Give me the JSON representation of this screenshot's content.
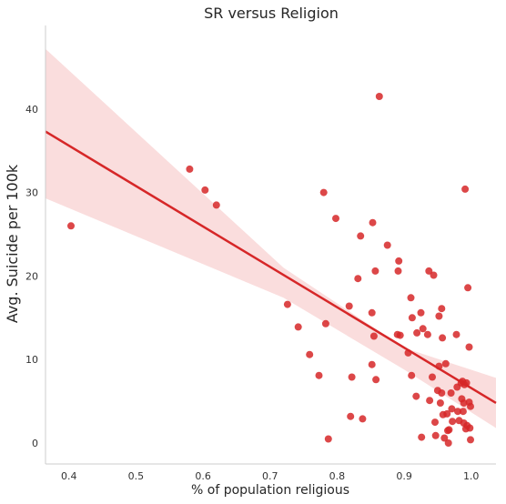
{
  "chart_data": {
    "type": "scatter",
    "title": "SR versus Religion",
    "xlabel": "% of population religious",
    "ylabel": "Avg. Suicide per 100k",
    "xlim": [
      0.365,
      1.037
    ],
    "ylim": [
      -2.5,
      50
    ],
    "xticks": [
      0.4,
      0.5,
      0.6,
      0.7,
      0.8,
      0.9,
      1.0
    ],
    "xtick_labels": [
      "0.4",
      "0.5",
      "0.6",
      "0.7",
      "0.8",
      "0.9",
      "1.0"
    ],
    "yticks": [
      0,
      10,
      20,
      30,
      40
    ],
    "ytick_labels": [
      "0",
      "10",
      "20",
      "30",
      "40"
    ],
    "grid": false,
    "regression": {
      "x": [
        0.365,
        1.037
      ],
      "y": [
        37.3,
        4.8
      ],
      "ci_upper": [
        [
          0.365,
          47.2
        ],
        [
          0.72,
          21.0
        ],
        [
          0.9,
          11.4
        ],
        [
          1.037,
          7.8
        ]
      ],
      "ci_lower": [
        [
          0.365,
          29.3
        ],
        [
          0.72,
          17.4
        ],
        [
          0.9,
          8.8
        ],
        [
          1.037,
          1.8
        ]
      ],
      "color": "#d62728",
      "band_color": "#f7c6c7"
    },
    "point_color": "#d62728",
    "points": [
      [
        0.403,
        26.0
      ],
      [
        0.58,
        32.8
      ],
      [
        0.603,
        30.3
      ],
      [
        0.62,
        28.5
      ],
      [
        0.726,
        16.6
      ],
      [
        0.742,
        13.9
      ],
      [
        0.759,
        10.6
      ],
      [
        0.773,
        8.1
      ],
      [
        0.78,
        30.0
      ],
      [
        0.783,
        14.3
      ],
      [
        0.787,
        0.5
      ],
      [
        0.798,
        26.9
      ],
      [
        0.818,
        16.4
      ],
      [
        0.82,
        3.2
      ],
      [
        0.822,
        7.9
      ],
      [
        0.831,
        19.7
      ],
      [
        0.835,
        24.8
      ],
      [
        0.838,
        2.9
      ],
      [
        0.852,
        15.6
      ],
      [
        0.852,
        9.4
      ],
      [
        0.853,
        26.4
      ],
      [
        0.855,
        12.8
      ],
      [
        0.857,
        20.6
      ],
      [
        0.858,
        7.6
      ],
      [
        0.863,
        41.5
      ],
      [
        0.875,
        23.7
      ],
      [
        0.89,
        13.0
      ],
      [
        0.891,
        20.6
      ],
      [
        0.892,
        21.8
      ],
      [
        0.894,
        12.9
      ],
      [
        0.906,
        10.8
      ],
      [
        0.91,
        17.4
      ],
      [
        0.911,
        8.1
      ],
      [
        0.912,
        15.0
      ],
      [
        0.918,
        5.6
      ],
      [
        0.919,
        13.2
      ],
      [
        0.925,
        15.6
      ],
      [
        0.926,
        0.7
      ],
      [
        0.928,
        13.7
      ],
      [
        0.935,
        13.0
      ],
      [
        0.937,
        20.6
      ],
      [
        0.938,
        5.1
      ],
      [
        0.942,
        7.9
      ],
      [
        0.944,
        20.1
      ],
      [
        0.946,
        2.5
      ],
      [
        0.947,
        0.9
      ],
      [
        0.95,
        6.3
      ],
      [
        0.952,
        15.2
      ],
      [
        0.952,
        9.2
      ],
      [
        0.954,
        4.8
      ],
      [
        0.956,
        16.1
      ],
      [
        0.956,
        6.0
      ],
      [
        0.957,
        12.6
      ],
      [
        0.958,
        3.4
      ],
      [
        0.96,
        0.6
      ],
      [
        0.962,
        9.5
      ],
      [
        0.964,
        3.5
      ],
      [
        0.965,
        1.5
      ],
      [
        0.966,
        0.0
      ],
      [
        0.967,
        1.6
      ],
      [
        0.97,
        6.0
      ],
      [
        0.971,
        4.1
      ],
      [
        0.972,
        2.6
      ],
      [
        0.978,
        13.0
      ],
      [
        0.979,
        6.7
      ],
      [
        0.98,
        3.8
      ],
      [
        0.982,
        2.7
      ],
      [
        0.985,
        7.2
      ],
      [
        0.986,
        5.3
      ],
      [
        0.987,
        7.4
      ],
      [
        0.988,
        3.8
      ],
      [
        0.989,
        2.4
      ],
      [
        0.99,
        7.0
      ],
      [
        0.991,
        30.4
      ],
      [
        0.992,
        1.7
      ],
      [
        0.993,
        7.2
      ],
      [
        0.994,
        2.1
      ],
      [
        0.995,
        18.6
      ],
      [
        0.997,
        11.5
      ],
      [
        0.997,
        4.9
      ],
      [
        0.998,
        1.8
      ],
      [
        0.999,
        4.4
      ],
      [
        0.999,
        0.4
      ],
      [
        0.989,
        4.8
      ]
    ]
  }
}
